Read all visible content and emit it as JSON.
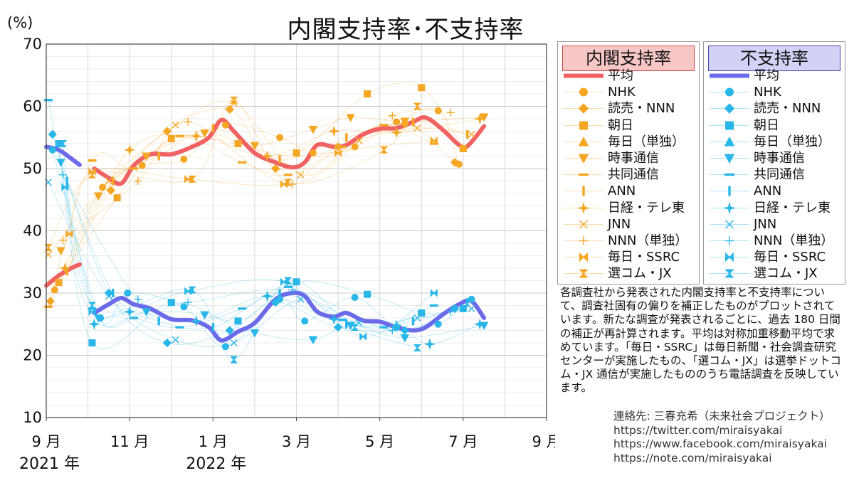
{
  "header": {
    "title": "内閣支持率･不支持率",
    "unit": "(%)"
  },
  "chart_data": {
    "type": "line",
    "ylim": [
      10,
      70
    ],
    "yticks": [
      10,
      20,
      30,
      40,
      50,
      60,
      70
    ],
    "xlim": [
      0,
      12
    ],
    "x_unit": "months since 2021-09",
    "xticks": [
      {
        "x": 0,
        "label": "9 月"
      },
      {
        "x": 2,
        "label": "11 月"
      },
      {
        "x": 4,
        "label": "1 月"
      },
      {
        "x": 6,
        "label": "3 月"
      },
      {
        "x": 8,
        "label": "5 月"
      },
      {
        "x": 10,
        "label": "7 月"
      },
      {
        "x": 12,
        "label": "9 月"
      }
    ],
    "year_labels": [
      {
        "x": 0,
        "label": "2021 年"
      },
      {
        "x": 4,
        "label": "2022 年"
      }
    ],
    "grid": true,
    "legend_support_title": "内閣支持率",
    "legend_disapproval_title": "不支持率",
    "support_color": "#f06262",
    "disapproval_color": "#6b6bea",
    "pollster_colors": {
      "support": "#f5a623",
      "disapproval": "#29b6e8"
    },
    "series": [
      {
        "name": "平均",
        "group": "support",
        "segment": 1,
        "points": [
          [
            0,
            31.2
          ],
          [
            0.3,
            32.8
          ],
          [
            0.6,
            34.0
          ],
          [
            0.8,
            34.6
          ]
        ]
      },
      {
        "name": "平均",
        "group": "support",
        "segment": 2,
        "points": [
          [
            1.15,
            50.0
          ],
          [
            1.5,
            48.5
          ],
          [
            1.8,
            47.6
          ],
          [
            2.1,
            50.5
          ],
          [
            2.5,
            52.3
          ],
          [
            3.0,
            52.3
          ],
          [
            3.5,
            53.5
          ],
          [
            3.9,
            55.0
          ],
          [
            4.2,
            57.8
          ],
          [
            4.5,
            56.0
          ],
          [
            5.0,
            52.5
          ],
          [
            5.5,
            51.0
          ],
          [
            5.9,
            50.2
          ],
          [
            6.2,
            51.0
          ],
          [
            6.5,
            53.8
          ],
          [
            6.9,
            53.5
          ],
          [
            7.2,
            53.8
          ],
          [
            7.6,
            55.5
          ],
          [
            8.0,
            56.4
          ],
          [
            8.4,
            56.5
          ],
          [
            8.8,
            57.5
          ],
          [
            9.1,
            58.2
          ],
          [
            9.5,
            56.3
          ],
          [
            9.9,
            53.8
          ],
          [
            10.1,
            53.6
          ],
          [
            10.5,
            56.8
          ]
        ]
      },
      {
        "name": "平均",
        "group": "disapproval",
        "segment": 1,
        "points": [
          [
            0,
            53.5
          ],
          [
            0.3,
            53.0
          ],
          [
            0.6,
            51.6
          ],
          [
            0.8,
            50.6
          ]
        ]
      },
      {
        "name": "平均",
        "group": "disapproval",
        "segment": 2,
        "points": [
          [
            1.15,
            26.8
          ],
          [
            1.5,
            28.2
          ],
          [
            1.8,
            29.2
          ],
          [
            2.1,
            28.2
          ],
          [
            2.5,
            27.5
          ],
          [
            3.0,
            25.8
          ],
          [
            3.5,
            25.6
          ],
          [
            3.9,
            24.5
          ],
          [
            4.2,
            22.4
          ],
          [
            4.6,
            23.8
          ],
          [
            5.0,
            25.2
          ],
          [
            5.5,
            29.0
          ],
          [
            5.9,
            30.0
          ],
          [
            6.2,
            29.5
          ],
          [
            6.5,
            27.0
          ],
          [
            6.9,
            26.2
          ],
          [
            7.2,
            26.8
          ],
          [
            7.6,
            25.6
          ],
          [
            8.0,
            25.4
          ],
          [
            8.4,
            24.5
          ],
          [
            8.8,
            24.0
          ],
          [
            9.1,
            24.5
          ],
          [
            9.5,
            26.5
          ],
          [
            9.9,
            28.2
          ],
          [
            10.2,
            28.7
          ],
          [
            10.5,
            26.0
          ]
        ]
      },
      {
        "name": "NHK",
        "group": "support",
        "points": [
          [
            0.2,
            30.5
          ],
          [
            1.35,
            47.0
          ],
          [
            2.3,
            50.5
          ],
          [
            3.3,
            51.5
          ],
          [
            4.3,
            57.0
          ],
          [
            5.6,
            55.0
          ],
          [
            6.4,
            52.5
          ],
          [
            7.4,
            53.5
          ],
          [
            8.4,
            57.5
          ],
          [
            9.4,
            59.3
          ],
          [
            9.9,
            50.7
          ]
        ]
      },
      {
        "name": "NHK",
        "group": "disapproval",
        "points": [
          [
            0.15,
            53.0
          ],
          [
            1.3,
            26.0
          ],
          [
            1.95,
            30.0
          ],
          [
            3.3,
            27.8
          ],
          [
            4.3,
            21.4
          ],
          [
            5.6,
            29.0
          ],
          [
            6.2,
            25.5
          ],
          [
            7.4,
            29.3
          ],
          [
            8.4,
            24.5
          ],
          [
            9.4,
            25.0
          ],
          [
            10.2,
            29.0
          ]
        ]
      },
      {
        "name": "読売・NNN",
        "group": "support",
        "points": [
          [
            0.1,
            28.7
          ],
          [
            1.55,
            46.5
          ],
          [
            2.9,
            56.0
          ],
          [
            4.4,
            59.5
          ],
          [
            5.5,
            50.0
          ],
          [
            7.0,
            53.5
          ],
          [
            8.6,
            57.2
          ],
          [
            9.8,
            51.0
          ]
        ]
      },
      {
        "name": "読売・NNN",
        "group": "disapproval",
        "points": [
          [
            0.15,
            55.5
          ],
          [
            1.5,
            30.0
          ],
          [
            2.9,
            22.0
          ],
          [
            4.4,
            24.0
          ],
          [
            5.5,
            28.5
          ],
          [
            7.0,
            24.5
          ],
          [
            8.6,
            24.0
          ],
          [
            9.8,
            27.5
          ]
        ]
      },
      {
        "name": "朝日",
        "group": "support",
        "points": [
          [
            0.3,
            31.7
          ],
          [
            1.7,
            45.3
          ],
          [
            3.0,
            54.8
          ],
          [
            4.6,
            54.0
          ],
          [
            6.0,
            52.5
          ],
          [
            7.7,
            62.0
          ],
          [
            9.0,
            63.0
          ],
          [
            10.0,
            53.2
          ]
        ]
      },
      {
        "name": "朝日",
        "group": "disapproval",
        "points": [
          [
            0.3,
            54.0
          ],
          [
            1.1,
            22.0
          ],
          [
            3.0,
            28.5
          ],
          [
            4.6,
            25.5
          ],
          [
            6.0,
            31.8
          ],
          [
            7.7,
            29.8
          ],
          [
            9.0,
            26.8
          ],
          [
            10.0,
            27.5
          ]
        ]
      },
      {
        "name": "時事通信",
        "group": "support",
        "points": [
          [
            0.35,
            36.8
          ],
          [
            1.25,
            45.6
          ],
          [
            2.4,
            52.0
          ],
          [
            3.8,
            55.7
          ],
          [
            5.0,
            53.7
          ],
          [
            6.4,
            56.3
          ],
          [
            7.3,
            58.2
          ],
          [
            8.6,
            57.6
          ],
          [
            10.5,
            58.3
          ]
        ]
      },
      {
        "name": "時事通信",
        "group": "disapproval",
        "points": [
          [
            0.35,
            51.0
          ],
          [
            1.25,
            26.0
          ],
          [
            2.4,
            27.0
          ],
          [
            3.8,
            26.5
          ],
          [
            5.0,
            23.6
          ],
          [
            6.4,
            22.5
          ],
          [
            7.3,
            24.8
          ],
          [
            8.6,
            22.8
          ],
          [
            10.5,
            24.8
          ]
        ]
      },
      {
        "name": "共同通信",
        "group": "support",
        "points": [
          [
            0.05,
            27.8
          ],
          [
            1.1,
            51.3
          ],
          [
            2.1,
            50.0
          ],
          [
            3.2,
            55.2
          ],
          [
            4.7,
            51.0
          ],
          [
            5.8,
            49.0
          ],
          [
            7.1,
            53.5
          ],
          [
            8.1,
            57.0
          ],
          [
            9.3,
            54.0
          ]
        ]
      },
      {
        "name": "共同通信",
        "group": "disapproval",
        "points": [
          [
            0.05,
            61.0
          ],
          [
            1.1,
            27.5
          ],
          [
            2.1,
            26.0
          ],
          [
            3.2,
            24.5
          ],
          [
            4.7,
            27.5
          ],
          [
            5.8,
            31.0
          ],
          [
            7.1,
            25.7
          ],
          [
            8.1,
            24.5
          ],
          [
            9.3,
            28.0
          ]
        ]
      },
      {
        "name": "ANN",
        "group": "support",
        "points": [
          [
            0.5,
            33.5
          ],
          [
            1.6,
            48.0
          ],
          [
            2.7,
            52.0
          ],
          [
            4.0,
            56.5
          ],
          [
            5.6,
            51.5
          ],
          [
            7.2,
            55.0
          ],
          [
            8.8,
            57.5
          ],
          [
            10.1,
            55.5
          ]
        ]
      },
      {
        "name": "ANN",
        "group": "disapproval",
        "points": [
          [
            0.5,
            48.0
          ],
          [
            1.6,
            30.0
          ],
          [
            2.7,
            25.5
          ],
          [
            4.0,
            24.5
          ],
          [
            5.6,
            30.0
          ],
          [
            7.2,
            25.0
          ],
          [
            8.8,
            25.5
          ],
          [
            10.1,
            28.5
          ]
        ]
      },
      {
        "name": "日経・テレ東",
        "group": "support",
        "points": [
          [
            0.45,
            34.0
          ],
          [
            2.0,
            53.0
          ],
          [
            3.6,
            55.2
          ],
          [
            5.3,
            52.0
          ],
          [
            6.9,
            56.0
          ],
          [
            8.4,
            55.8
          ],
          [
            10.4,
            58.0
          ]
        ]
      },
      {
        "name": "日経・テレ東",
        "group": "disapproval",
        "points": [
          [
            1.15,
            25.0
          ],
          [
            2.0,
            27.0
          ],
          [
            3.6,
            25.5
          ],
          [
            5.3,
            29.5
          ],
          [
            6.9,
            25.8
          ],
          [
            8.4,
            24.8
          ],
          [
            9.2,
            21.8
          ],
          [
            10.4,
            25.0
          ]
        ]
      },
      {
        "name": "JNN",
        "group": "support",
        "points": [
          [
            0.05,
            36.2
          ],
          [
            1.5,
            48.0
          ],
          [
            3.1,
            57.0
          ],
          [
            4.5,
            60.5
          ],
          [
            6.1,
            49.0
          ],
          [
            7.5,
            54.5
          ],
          [
            8.9,
            56.5
          ],
          [
            10.2,
            55.5
          ]
        ]
      },
      {
        "name": "JNN",
        "group": "disapproval",
        "points": [
          [
            0.05,
            47.8
          ],
          [
            1.5,
            29.5
          ],
          [
            3.1,
            22.5
          ],
          [
            4.5,
            22.0
          ],
          [
            6.1,
            29.0
          ],
          [
            7.5,
            25.2
          ],
          [
            8.9,
            26.0
          ],
          [
            10.2,
            27.5
          ]
        ]
      },
      {
        "name": "NNN（単独）",
        "group": "support",
        "points": [
          [
            0.4,
            38.5
          ],
          [
            2.2,
            48.0
          ],
          [
            3.4,
            57.5
          ],
          [
            5.9,
            47.5
          ],
          [
            8.3,
            58.5
          ],
          [
            9.7,
            59.0
          ]
        ]
      },
      {
        "name": "NNN（単独）",
        "group": "disapproval",
        "points": [
          [
            0.4,
            49.0
          ],
          [
            2.2,
            29.0
          ],
          [
            3.4,
            28.5
          ],
          [
            5.9,
            30.5
          ],
          [
            8.3,
            24.0
          ],
          [
            9.7,
            27.0
          ]
        ]
      },
      {
        "name": "毎日・SSRC",
        "group": "support",
        "points": [
          [
            0.55,
            39.5
          ],
          [
            1.1,
            49.5
          ],
          [
            3.4,
            48.3
          ],
          [
            5.7,
            47.5
          ],
          [
            7.0,
            52.5
          ],
          [
            9.3,
            54.5
          ]
        ]
      },
      {
        "name": "毎日・SSRC",
        "group": "disapproval",
        "points": [
          [
            0.45,
            47.0
          ],
          [
            1.1,
            27.0
          ],
          [
            3.4,
            30.3
          ],
          [
            5.7,
            31.8
          ],
          [
            7.6,
            23.0
          ],
          [
            9.3,
            30.0
          ]
        ]
      },
      {
        "name": "選コム・JX",
        "group": "support",
        "points": [
          [
            0.05,
            37.3
          ],
          [
            1.1,
            49.0
          ],
          [
            3.5,
            48.3
          ],
          [
            4.5,
            61.0
          ],
          [
            5.8,
            47.8
          ],
          [
            8.1,
            53.0
          ],
          [
            8.9,
            60.0
          ]
        ]
      },
      {
        "name": "選コム・JX",
        "group": "disapproval",
        "points": [
          [
            0.4,
            54.0
          ],
          [
            1.1,
            28.0
          ],
          [
            3.5,
            30.5
          ],
          [
            4.5,
            19.3
          ],
          [
            5.8,
            32.0
          ],
          [
            7.4,
            24.5
          ],
          [
            8.9,
            21.2
          ]
        ]
      }
    ],
    "legend_items": [
      {
        "name": "平均",
        "marker": "line"
      },
      {
        "name": "NHK",
        "marker": "circle"
      },
      {
        "name": "読売・NNN",
        "marker": "diamond"
      },
      {
        "name": "朝日",
        "marker": "square"
      },
      {
        "name": "毎日（単独）",
        "marker": "triangle-up"
      },
      {
        "name": "時事通信",
        "marker": "triangle-down"
      },
      {
        "name": "共同通信",
        "marker": "hbar"
      },
      {
        "name": "ANN",
        "marker": "vbar"
      },
      {
        "name": "日経・テレ東",
        "marker": "star4"
      },
      {
        "name": "JNN",
        "marker": "x"
      },
      {
        "name": "NNN（単独）",
        "marker": "plus"
      },
      {
        "name": "毎日・SSRC",
        "marker": "bowtie"
      },
      {
        "name": "選コム・JX",
        "marker": "hourglass"
      }
    ]
  },
  "note": "各調査社から発表された内閣支持率と不支持率について、調査社固有の偏りを補正したものがプロットされています。新たな調査が発表されるごとに、過去 180 日間の補正が再計算されます。平均は対称加重移動平均で求めています。「毎日・SSRC」は毎日新聞・社会調査研究センターが実施したもの、「選コム・JX」は選挙ドットコム・JX 通信が実施したもののうち電話調査を反映しています。",
  "contact": {
    "label": "連絡先: 三春充希（未来社会プロジェクト）",
    "twitter": "https://twitter.com/miraisyakai",
    "facebook": "https://www.facebook.com/miraisyakai",
    "note": "https://note.com/miraisyakai"
  }
}
